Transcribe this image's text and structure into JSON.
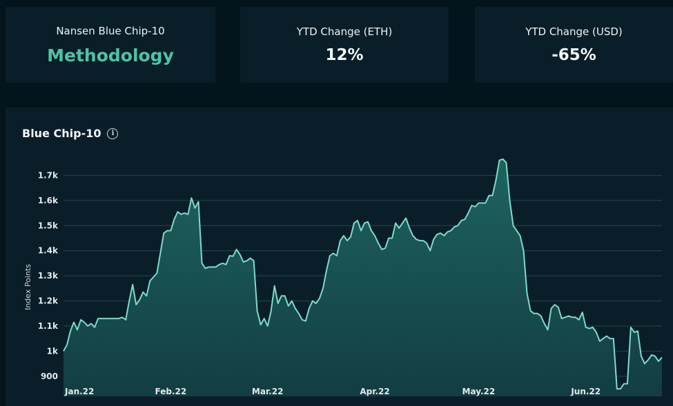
{
  "stats": [
    {
      "label": "Nansen Blue Chip-10",
      "value": "Methodology"
    },
    {
      "label": "YTD Change (ETH)",
      "value": "12%"
    },
    {
      "label": "YTD Change (USD)",
      "value": "-65%"
    }
  ],
  "chart": {
    "title": "Blue Chip-10",
    "info_icon": "info-icon"
  },
  "colors": {
    "line": "#7fdcc8",
    "fill": "#1d5a58",
    "accent": "#4fc3a4",
    "grid": "#1d4a4c"
  },
  "chart_data": {
    "type": "area",
    "title": "Blue Chip-10",
    "xlabel": "",
    "ylabel": "Index Points",
    "ylim": [
      820,
      1800
    ],
    "xlim": [
      0,
      173
    ],
    "yticks": [
      {
        "value": 900,
        "label": "900"
      },
      {
        "value": 1000,
        "label": "1k"
      },
      {
        "value": 1100,
        "label": "1.1k"
      },
      {
        "value": 1200,
        "label": "1.2k"
      },
      {
        "value": 1300,
        "label": "1.3k"
      },
      {
        "value": 1400,
        "label": "1.4k"
      },
      {
        "value": 1500,
        "label": "1.5k"
      },
      {
        "value": 1600,
        "label": "1.6k"
      },
      {
        "value": 1700,
        "label": "1.7k"
      }
    ],
    "xticks": [
      {
        "value": 0,
        "label": "Jan.22"
      },
      {
        "value": 31,
        "label": "Feb.22"
      },
      {
        "value": 59,
        "label": "Mar.22"
      },
      {
        "value": 90,
        "label": "Apr.22"
      },
      {
        "value": 120,
        "label": "May.22"
      },
      {
        "value": 151,
        "label": "Jun.22"
      }
    ],
    "grid": true,
    "points": [
      [
        0,
        1000
      ],
      [
        1,
        1025
      ],
      [
        2,
        1080
      ],
      [
        3,
        1115
      ],
      [
        4,
        1085
      ],
      [
        5,
        1125
      ],
      [
        6,
        1115
      ],
      [
        7,
        1100
      ],
      [
        8,
        1110
      ],
      [
        9,
        1095
      ],
      [
        10,
        1130
      ],
      [
        11,
        1130
      ],
      [
        12,
        1130
      ],
      [
        13,
        1130
      ],
      [
        14,
        1130
      ],
      [
        15,
        1130
      ],
      [
        16,
        1130
      ],
      [
        17,
        1135
      ],
      [
        18,
        1125
      ],
      [
        19,
        1200
      ],
      [
        20,
        1265
      ],
      [
        21,
        1185
      ],
      [
        22,
        1205
      ],
      [
        23,
        1235
      ],
      [
        24,
        1220
      ],
      [
        25,
        1280
      ],
      [
        26,
        1295
      ],
      [
        27,
        1310
      ],
      [
        28,
        1390
      ],
      [
        29,
        1470
      ],
      [
        30,
        1480
      ],
      [
        31,
        1480
      ],
      [
        32,
        1525
      ],
      [
        33,
        1555
      ],
      [
        34,
        1545
      ],
      [
        35,
        1550
      ],
      [
        36,
        1545
      ],
      [
        37,
        1610
      ],
      [
        38,
        1570
      ],
      [
        39,
        1595
      ],
      [
        40,
        1350
      ],
      [
        41,
        1330
      ],
      [
        42,
        1335
      ],
      [
        43,
        1335
      ],
      [
        44,
        1335
      ],
      [
        45,
        1345
      ],
      [
        46,
        1350
      ],
      [
        47,
        1345
      ],
      [
        48,
        1380
      ],
      [
        49,
        1378
      ],
      [
        50,
        1405
      ],
      [
        51,
        1385
      ],
      [
        52,
        1355
      ],
      [
        53,
        1360
      ],
      [
        54,
        1370
      ],
      [
        55,
        1360
      ],
      [
        56,
        1160
      ],
      [
        57,
        1105
      ],
      [
        58,
        1130
      ],
      [
        59,
        1100
      ],
      [
        60,
        1160
      ],
      [
        61,
        1260
      ],
      [
        62,
        1190
      ],
      [
        63,
        1220
      ],
      [
        64,
        1220
      ],
      [
        65,
        1180
      ],
      [
        66,
        1200
      ],
      [
        67,
        1170
      ],
      [
        68,
        1150
      ],
      [
        69,
        1125
      ],
      [
        70,
        1120
      ],
      [
        71,
        1170
      ],
      [
        72,
        1200
      ],
      [
        73,
        1190
      ],
      [
        74,
        1210
      ],
      [
        75,
        1250
      ],
      [
        76,
        1320
      ],
      [
        77,
        1380
      ],
      [
        78,
        1390
      ],
      [
        79,
        1380
      ],
      [
        80,
        1440
      ],
      [
        81,
        1460
      ],
      [
        82,
        1440
      ],
      [
        83,
        1455
      ],
      [
        84,
        1510
      ],
      [
        85,
        1520
      ],
      [
        86,
        1480
      ],
      [
        87,
        1510
      ],
      [
        88,
        1515
      ],
      [
        89,
        1480
      ],
      [
        90,
        1460
      ],
      [
        91,
        1430
      ],
      [
        92,
        1405
      ],
      [
        93,
        1410
      ],
      [
        94,
        1450
      ],
      [
        95,
        1450
      ],
      [
        96,
        1510
      ],
      [
        97,
        1490
      ],
      [
        98,
        1510
      ],
      [
        99,
        1530
      ],
      [
        100,
        1490
      ],
      [
        101,
        1460
      ],
      [
        102,
        1445
      ],
      [
        103,
        1440
      ],
      [
        104,
        1440
      ],
      [
        105,
        1430
      ],
      [
        106,
        1400
      ],
      [
        107,
        1445
      ],
      [
        108,
        1465
      ],
      [
        109,
        1470
      ],
      [
        110,
        1460
      ],
      [
        111,
        1475
      ],
      [
        112,
        1480
      ],
      [
        113,
        1495
      ],
      [
        114,
        1500
      ],
      [
        115,
        1520
      ],
      [
        116,
        1525
      ],
      [
        117,
        1550
      ],
      [
        118,
        1580
      ],
      [
        119,
        1575
      ],
      [
        120,
        1590
      ],
      [
        121,
        1590
      ],
      [
        122,
        1590
      ],
      [
        123,
        1620
      ],
      [
        124,
        1620
      ],
      [
        125,
        1680
      ],
      [
        126,
        1760
      ],
      [
        127,
        1765
      ],
      [
        128,
        1750
      ],
      [
        129,
        1600
      ],
      [
        130,
        1500
      ],
      [
        131,
        1480
      ],
      [
        132,
        1460
      ],
      [
        133,
        1400
      ],
      [
        134,
        1230
      ],
      [
        135,
        1160
      ],
      [
        136,
        1150
      ],
      [
        137,
        1150
      ],
      [
        138,
        1140
      ],
      [
        139,
        1110
      ],
      [
        140,
        1085
      ],
      [
        141,
        1170
      ],
      [
        142,
        1185
      ],
      [
        143,
        1175
      ],
      [
        144,
        1130
      ],
      [
        145,
        1135
      ],
      [
        146,
        1140
      ],
      [
        147,
        1135
      ],
      [
        148,
        1135
      ],
      [
        149,
        1125
      ],
      [
        150,
        1155
      ],
      [
        151,
        1095
      ],
      [
        152,
        1090
      ],
      [
        153,
        1095
      ],
      [
        154,
        1075
      ],
      [
        155,
        1040
      ],
      [
        156,
        1050
      ],
      [
        157,
        1060
      ],
      [
        158,
        1050
      ],
      [
        159,
        1050
      ],
      [
        160,
        850
      ],
      [
        161,
        850
      ],
      [
        162,
        870
      ],
      [
        163,
        870
      ],
      [
        164,
        1095
      ],
      [
        165,
        1075
      ],
      [
        166,
        1080
      ],
      [
        167,
        980
      ],
      [
        168,
        950
      ],
      [
        169,
        965
      ],
      [
        170,
        985
      ],
      [
        171,
        980
      ],
      [
        172,
        960
      ],
      [
        173,
        975
      ]
    ]
  }
}
